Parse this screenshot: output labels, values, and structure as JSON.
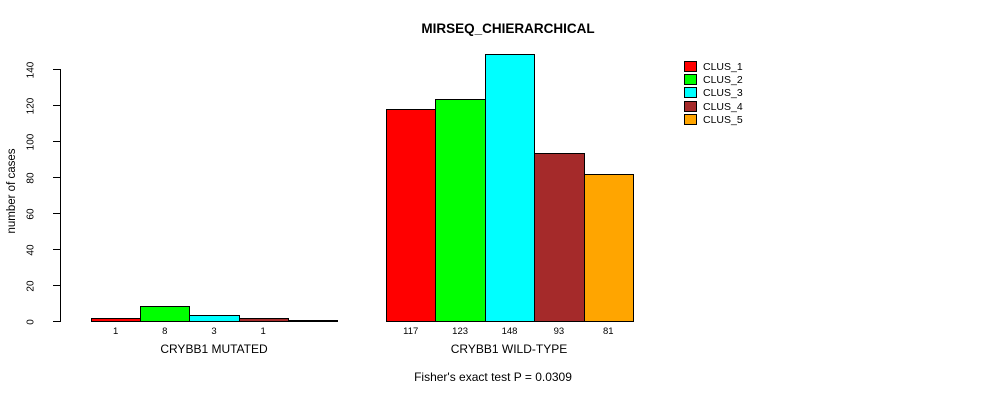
{
  "chart_data": {
    "type": "bar",
    "title": "MIRSEQ_CHIERARCHICAL",
    "ylabel": "number of cases",
    "ylim": [
      0,
      140
    ],
    "yticks": [
      0,
      20,
      40,
      60,
      80,
      100,
      120,
      140
    ],
    "grid": false,
    "legend_position": "top-right",
    "legend": [
      {
        "label": "CLUS_1",
        "color": "#FF0000"
      },
      {
        "label": "CLUS_2",
        "color": "#00FF00"
      },
      {
        "label": "CLUS_3",
        "color": "#00FFFF"
      },
      {
        "label": "CLUS_4",
        "color": "#A52A2A"
      },
      {
        "label": "CLUS_5",
        "color": "#FFA500"
      }
    ],
    "groups": [
      {
        "label": "CRYBB1 MUTATED",
        "values": [
          1,
          8,
          3,
          1,
          0
        ],
        "bar_labels": [
          "1",
          "8",
          "3",
          "1",
          ""
        ]
      },
      {
        "label": "CRYBB1 WILD-TYPE",
        "values": [
          117,
          123,
          148,
          93,
          81
        ],
        "bar_labels": [
          "117",
          "123",
          "148",
          "93",
          "81"
        ]
      }
    ],
    "annotation": "Fisher's exact test P = 0.0309"
  }
}
